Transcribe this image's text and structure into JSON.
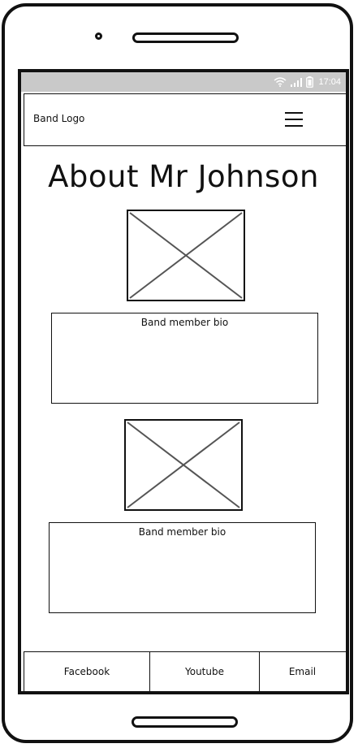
{
  "status_bar": {
    "time": "17:04",
    "icons": [
      "wifi-icon",
      "signal-icon",
      "battery-icon"
    ]
  },
  "header": {
    "logo_text": "Band Logo",
    "menu_icon": "hamburger-menu-icon"
  },
  "main": {
    "title": "About Mr Johnson",
    "members": [
      {
        "image": "image-placeholder",
        "bio_label": "Band member bio"
      },
      {
        "image": "image-placeholder",
        "bio_label": "Band member bio"
      }
    ]
  },
  "footer": {
    "links": [
      "Facebook",
      "Youtube",
      "Email"
    ]
  },
  "colors": {
    "status_bar": "#c9c9c9",
    "outline": "#111111",
    "placeholder_cross": "#555555"
  }
}
